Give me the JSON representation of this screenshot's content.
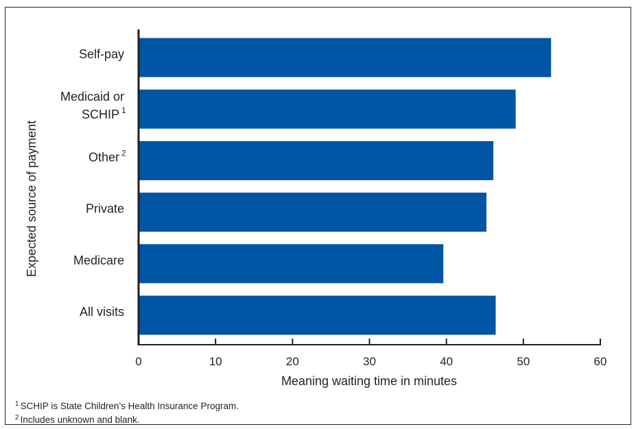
{
  "chart_data": {
    "type": "bar",
    "orientation": "horizontal",
    "categories": [
      "Self-pay",
      "Medicaid or SCHIP",
      "Other",
      "Private",
      "Medicare",
      "All visits"
    ],
    "category_lines": [
      [
        "Self-pay"
      ],
      [
        "Medicaid or",
        "SCHIP"
      ],
      [
        "Other"
      ],
      [
        "Private"
      ],
      [
        "Medicare"
      ],
      [
        "All visits"
      ]
    ],
    "category_superscripts": [
      "",
      "1",
      "2",
      "",
      "",
      ""
    ],
    "values": [
      53.6,
      49.0,
      46.1,
      45.2,
      39.6,
      46.4
    ],
    "xlabel": "Meaning waiting time in minutes",
    "ylabel": "Expected source of payment",
    "xlim": [
      0,
      60
    ],
    "xticks": [
      "0",
      "10",
      "20",
      "30",
      "40",
      "50",
      "60"
    ],
    "bar_color": "#0055a5",
    "grid": false
  },
  "footnotes": [
    {
      "mark": "1",
      "text": "SCHIP is State Children’s Health Insurance Program."
    },
    {
      "mark": "2",
      "text": "Includes unknown and blank."
    }
  ]
}
